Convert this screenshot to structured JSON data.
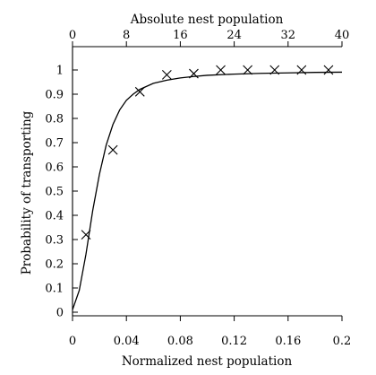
{
  "chart_data": {
    "type": "scatter",
    "title": "",
    "xlabel": "Normalized nest population",
    "ylabel": "Probability of transporting",
    "x2label": "Absolute nest population",
    "xlim": [
      0,
      0.2
    ],
    "ylim": [
      0,
      1
    ],
    "x2lim": [
      0,
      40
    ],
    "x_ticks": [
      0,
      0.04,
      0.08,
      0.12,
      0.16,
      0.2
    ],
    "x_tick_labels": [
      "0",
      "0.04",
      "0.08",
      "0.12",
      "0.16",
      "0.2"
    ],
    "x2_ticks": [
      0,
      8,
      16,
      24,
      32,
      40
    ],
    "x2_tick_labels": [
      "0",
      "8",
      "16",
      "24",
      "32",
      "40"
    ],
    "y_ticks": [
      0,
      0.1,
      0.2,
      0.3,
      0.4,
      0.5,
      0.6,
      0.7,
      0.8,
      0.9,
      1
    ],
    "y_tick_labels": [
      "0",
      "0.1",
      "0.2",
      "0.3",
      "0.4",
      "0.5",
      "0.6",
      "0.7",
      "0.8",
      "0.9",
      "1"
    ],
    "grid": false,
    "series": [
      {
        "marker": "x",
        "x": [
          0.01,
          0.03,
          0.05,
          0.07,
          0.09,
          0.11,
          0.13,
          0.15,
          0.17,
          0.19
        ],
        "y": [
          0.32,
          0.67,
          0.91,
          0.98,
          0.985,
          1.0,
          1.0,
          1.0,
          1.0,
          1.0
        ]
      },
      {
        "style": "line",
        "x": [
          0.0,
          0.005,
          0.01,
          0.015,
          0.02,
          0.025,
          0.03,
          0.035,
          0.04,
          0.045,
          0.05,
          0.06,
          0.07,
          0.08,
          0.09,
          0.1,
          0.12,
          0.14,
          0.16,
          0.18,
          0.2
        ],
        "y": [
          0.01,
          0.09,
          0.24,
          0.42,
          0.57,
          0.69,
          0.775,
          0.835,
          0.875,
          0.9,
          0.92,
          0.945,
          0.958,
          0.967,
          0.973,
          0.978,
          0.983,
          0.986,
          0.988,
          0.99,
          0.991
        ]
      }
    ]
  }
}
